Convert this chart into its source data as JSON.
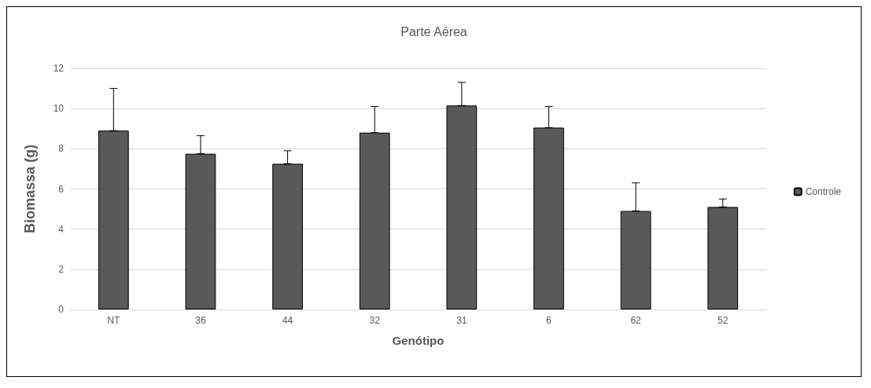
{
  "chart_data": {
    "type": "bar",
    "title": "Parte Aérea",
    "xlabel": "Genótipo",
    "ylabel": "Biomassa (g)",
    "categories": [
      "NT",
      "36",
      "44",
      "32",
      "31",
      "6",
      "62",
      "52"
    ],
    "series": [
      {
        "name": "Controle",
        "color": "#595959",
        "values": [
          8.9,
          7.75,
          7.25,
          8.8,
          10.15,
          9.05,
          4.9,
          5.1
        ],
        "errors": [
          [
            8.9,
            11.0
          ],
          [
            7.75,
            8.65
          ],
          [
            7.25,
            7.9
          ],
          [
            8.8,
            10.1
          ],
          [
            10.15,
            11.3
          ],
          [
            9.05,
            10.1
          ],
          [
            4.9,
            6.3
          ],
          [
            5.1,
            5.5
          ]
        ]
      }
    ],
    "ylim": [
      0,
      12
    ],
    "yticks": [
      0,
      2,
      4,
      6,
      8,
      10,
      12
    ],
    "grid": "y",
    "legend": "right"
  }
}
